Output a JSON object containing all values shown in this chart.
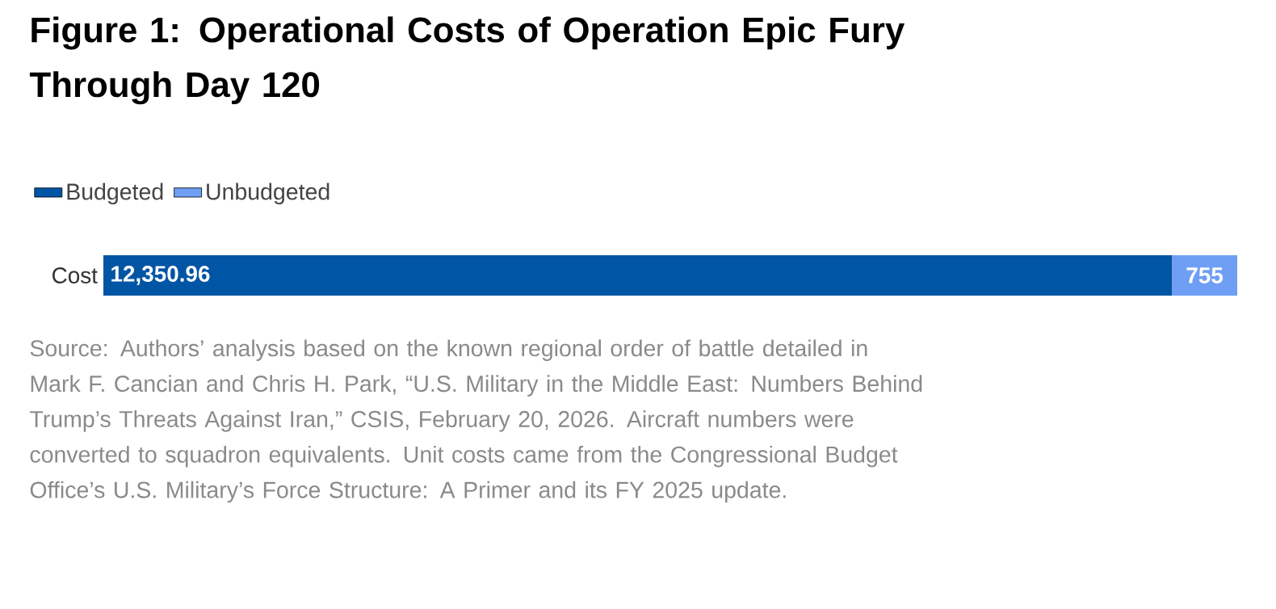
{
  "chart_data": {
    "type": "bar",
    "orientation": "horizontal",
    "stacked": true,
    "title": "Figure 1: Operational Costs of Operation Epic Fury Through Day 120",
    "categories": [
      "Cost"
    ],
    "series": [
      {
        "name": "Budgeted",
        "color": "#0055a4",
        "values": [
          12350.96
        ],
        "value_labels": [
          "12,350.96"
        ]
      },
      {
        "name": "Unbudgeted",
        "color": "#6f9ef5",
        "values": [
          755
        ],
        "value_labels": [
          "755"
        ]
      }
    ],
    "legend": "top left",
    "annotations": [
      "Source: Authors’ analysis based on the known regional order of battle detailed in Mark F. Cancian and Chris H. Park, “U.S. Military in the Middle East: Numbers Behind Trump’s Threats Against Iran,” CSIS, February 20, 2026. Aircraft numbers were converted to squadron equivalents. Unit costs came from the Congressional Budget Office’s U.S. Military’s Force Structure: A Primer and its FY 2025 update."
    ]
  }
}
